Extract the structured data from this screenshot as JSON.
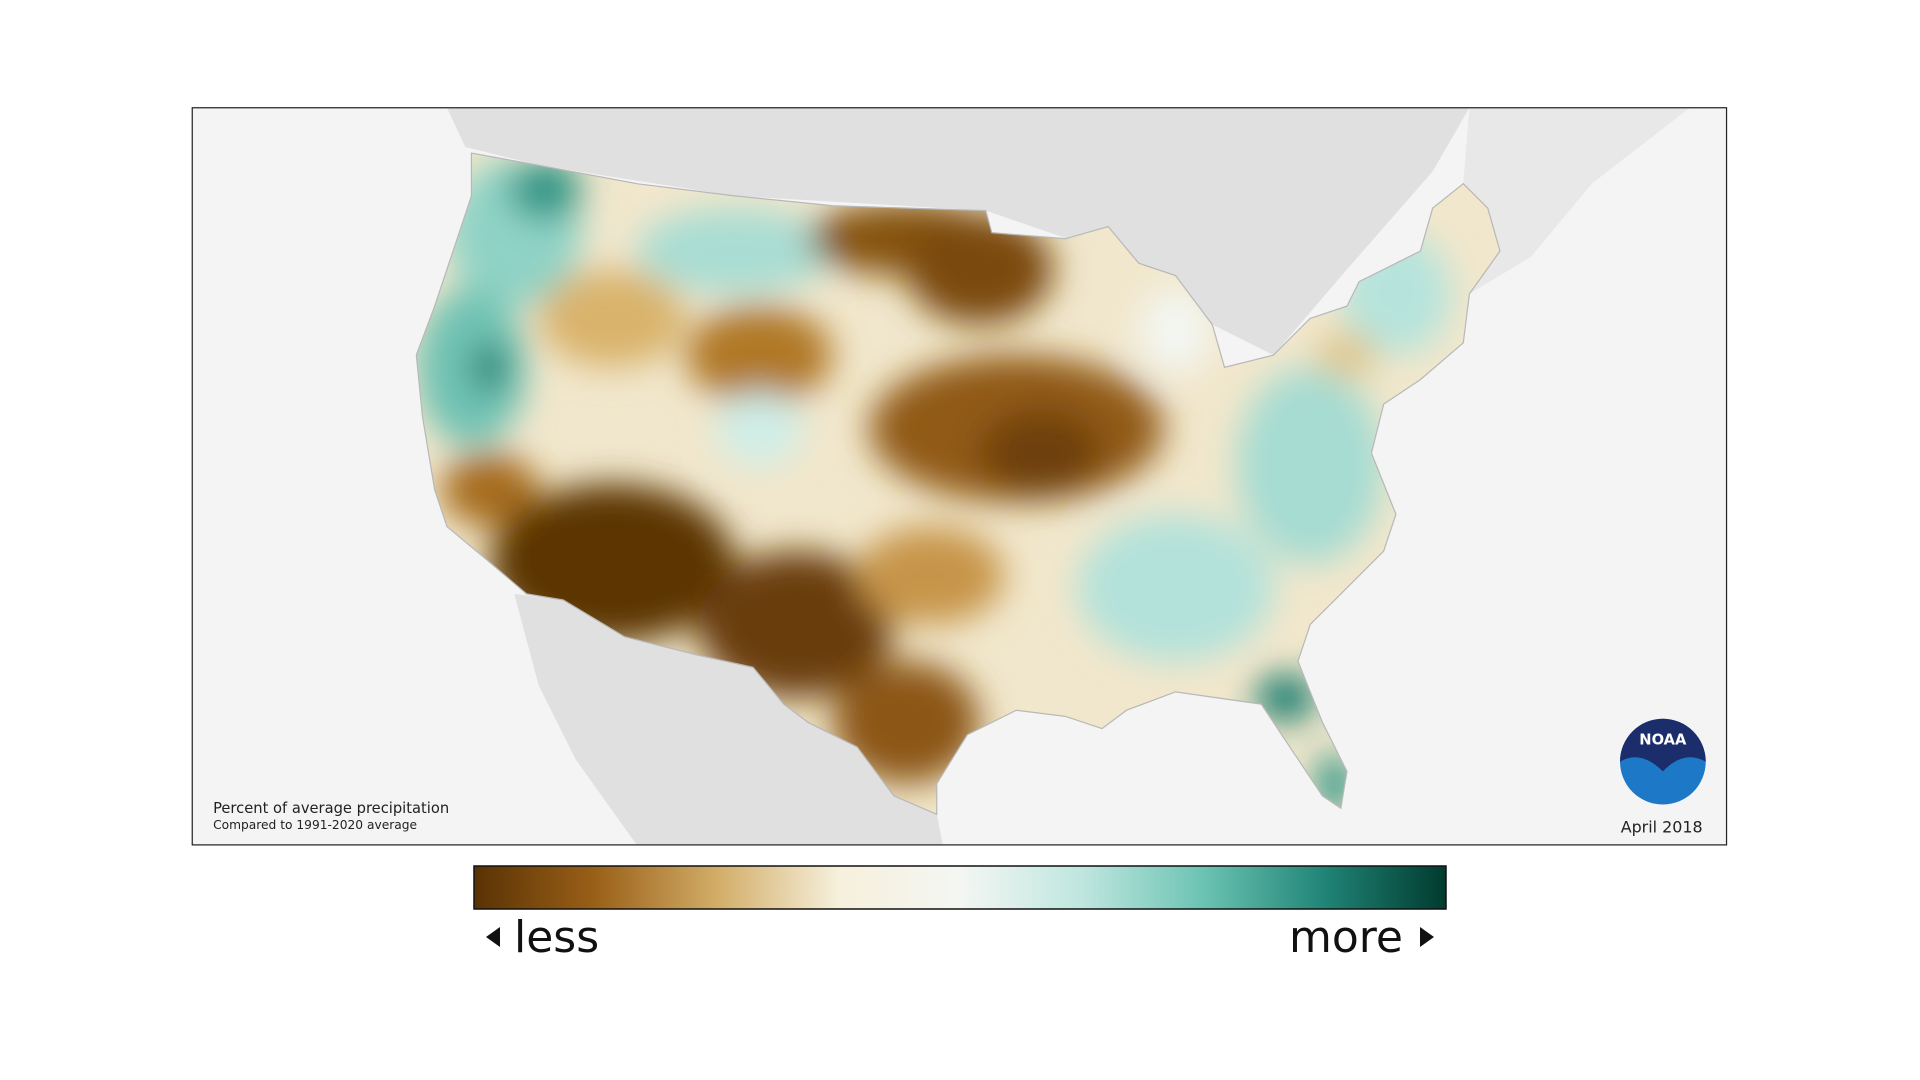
{
  "map": {
    "note": "Percent of average precipitation",
    "baseline": "Compared to 1991-2020 average",
    "period": "April 2018",
    "logo": "NOAA",
    "legend": {
      "less": "less",
      "more": "more",
      "colors": [
        "#593204",
        "#9a6018",
        "#d2ad68",
        "#f6f0dc",
        "#f4f6f3",
        "#bfe6df",
        "#6cc3b3",
        "#208476",
        "#013b2f"
      ]
    }
  }
}
